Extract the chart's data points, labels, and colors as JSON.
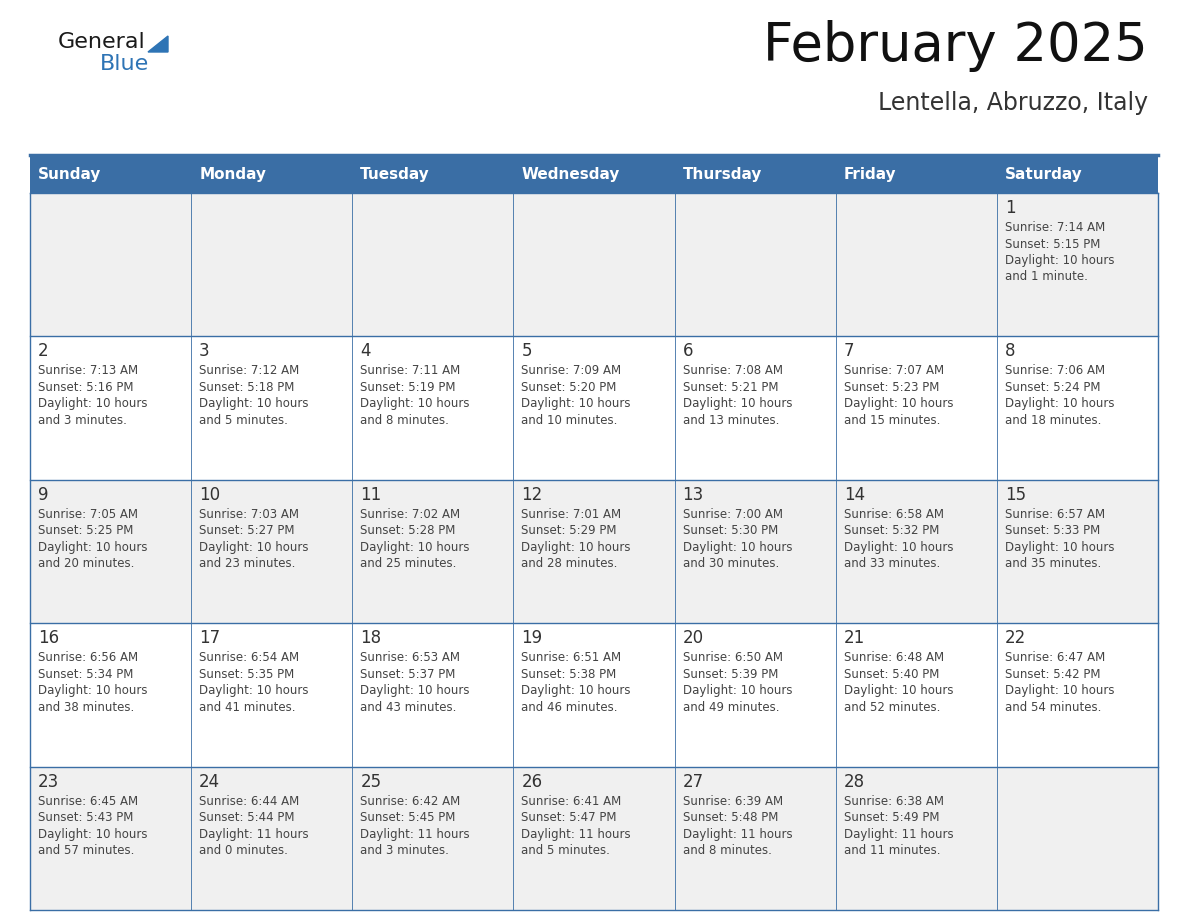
{
  "title": "February 2025",
  "subtitle": "Lentella, Abruzzo, Italy",
  "days_of_week": [
    "Sunday",
    "Monday",
    "Tuesday",
    "Wednesday",
    "Thursday",
    "Friday",
    "Saturday"
  ],
  "header_bg": "#3a6ea5",
  "header_text": "#ffffff",
  "cell_bg_odd": "#f0f0f0",
  "cell_bg_even": "#ffffff",
  "border_color": "#3a6ea5",
  "text_color": "#444444",
  "day_number_color": "#333333",
  "title_color": "#111111",
  "subtitle_color": "#333333",
  "blue_logo": "#2e74b5",
  "weeks": [
    [
      {
        "day": null,
        "info": null
      },
      {
        "day": null,
        "info": null
      },
      {
        "day": null,
        "info": null
      },
      {
        "day": null,
        "info": null
      },
      {
        "day": null,
        "info": null
      },
      {
        "day": null,
        "info": null
      },
      {
        "day": 1,
        "info": "Sunrise: 7:14 AM\nSunset: 5:15 PM\nDaylight: 10 hours\nand 1 minute."
      }
    ],
    [
      {
        "day": 2,
        "info": "Sunrise: 7:13 AM\nSunset: 5:16 PM\nDaylight: 10 hours\nand 3 minutes."
      },
      {
        "day": 3,
        "info": "Sunrise: 7:12 AM\nSunset: 5:18 PM\nDaylight: 10 hours\nand 5 minutes."
      },
      {
        "day": 4,
        "info": "Sunrise: 7:11 AM\nSunset: 5:19 PM\nDaylight: 10 hours\nand 8 minutes."
      },
      {
        "day": 5,
        "info": "Sunrise: 7:09 AM\nSunset: 5:20 PM\nDaylight: 10 hours\nand 10 minutes."
      },
      {
        "day": 6,
        "info": "Sunrise: 7:08 AM\nSunset: 5:21 PM\nDaylight: 10 hours\nand 13 minutes."
      },
      {
        "day": 7,
        "info": "Sunrise: 7:07 AM\nSunset: 5:23 PM\nDaylight: 10 hours\nand 15 minutes."
      },
      {
        "day": 8,
        "info": "Sunrise: 7:06 AM\nSunset: 5:24 PM\nDaylight: 10 hours\nand 18 minutes."
      }
    ],
    [
      {
        "day": 9,
        "info": "Sunrise: 7:05 AM\nSunset: 5:25 PM\nDaylight: 10 hours\nand 20 minutes."
      },
      {
        "day": 10,
        "info": "Sunrise: 7:03 AM\nSunset: 5:27 PM\nDaylight: 10 hours\nand 23 minutes."
      },
      {
        "day": 11,
        "info": "Sunrise: 7:02 AM\nSunset: 5:28 PM\nDaylight: 10 hours\nand 25 minutes."
      },
      {
        "day": 12,
        "info": "Sunrise: 7:01 AM\nSunset: 5:29 PM\nDaylight: 10 hours\nand 28 minutes."
      },
      {
        "day": 13,
        "info": "Sunrise: 7:00 AM\nSunset: 5:30 PM\nDaylight: 10 hours\nand 30 minutes."
      },
      {
        "day": 14,
        "info": "Sunrise: 6:58 AM\nSunset: 5:32 PM\nDaylight: 10 hours\nand 33 minutes."
      },
      {
        "day": 15,
        "info": "Sunrise: 6:57 AM\nSunset: 5:33 PM\nDaylight: 10 hours\nand 35 minutes."
      }
    ],
    [
      {
        "day": 16,
        "info": "Sunrise: 6:56 AM\nSunset: 5:34 PM\nDaylight: 10 hours\nand 38 minutes."
      },
      {
        "day": 17,
        "info": "Sunrise: 6:54 AM\nSunset: 5:35 PM\nDaylight: 10 hours\nand 41 minutes."
      },
      {
        "day": 18,
        "info": "Sunrise: 6:53 AM\nSunset: 5:37 PM\nDaylight: 10 hours\nand 43 minutes."
      },
      {
        "day": 19,
        "info": "Sunrise: 6:51 AM\nSunset: 5:38 PM\nDaylight: 10 hours\nand 46 minutes."
      },
      {
        "day": 20,
        "info": "Sunrise: 6:50 AM\nSunset: 5:39 PM\nDaylight: 10 hours\nand 49 minutes."
      },
      {
        "day": 21,
        "info": "Sunrise: 6:48 AM\nSunset: 5:40 PM\nDaylight: 10 hours\nand 52 minutes."
      },
      {
        "day": 22,
        "info": "Sunrise: 6:47 AM\nSunset: 5:42 PM\nDaylight: 10 hours\nand 54 minutes."
      }
    ],
    [
      {
        "day": 23,
        "info": "Sunrise: 6:45 AM\nSunset: 5:43 PM\nDaylight: 10 hours\nand 57 minutes."
      },
      {
        "day": 24,
        "info": "Sunrise: 6:44 AM\nSunset: 5:44 PM\nDaylight: 11 hours\nand 0 minutes."
      },
      {
        "day": 25,
        "info": "Sunrise: 6:42 AM\nSunset: 5:45 PM\nDaylight: 11 hours\nand 3 minutes."
      },
      {
        "day": 26,
        "info": "Sunrise: 6:41 AM\nSunset: 5:47 PM\nDaylight: 11 hours\nand 5 minutes."
      },
      {
        "day": 27,
        "info": "Sunrise: 6:39 AM\nSunset: 5:48 PM\nDaylight: 11 hours\nand 8 minutes."
      },
      {
        "day": 28,
        "info": "Sunrise: 6:38 AM\nSunset: 5:49 PM\nDaylight: 11 hours\nand 11 minutes."
      },
      {
        "day": null,
        "info": null
      }
    ]
  ]
}
